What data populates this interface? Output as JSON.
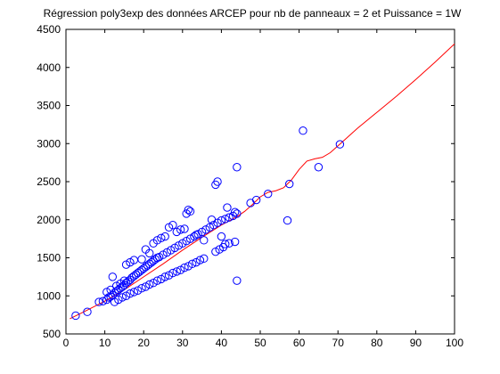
{
  "chart_data": {
    "type": "scatter",
    "title": "Régression poly3exp des données ARCEP pour nb de panneaux = 2 et Puissance = 1W",
    "xlabel": "",
    "ylabel": "",
    "xlim": [
      0,
      100
    ],
    "ylim": [
      500,
      4500
    ],
    "xticks": [
      0,
      10,
      20,
      30,
      40,
      50,
      60,
      70,
      80,
      90,
      100
    ],
    "yticks": [
      500,
      1000,
      1500,
      2000,
      2500,
      3000,
      3500,
      4000,
      4500
    ],
    "xtick_labels": [
      "0",
      "10",
      "20",
      "30",
      "40",
      "50",
      "60",
      "70",
      "80",
      "90",
      "100"
    ],
    "ytick_labels": [
      "500",
      "1000",
      "1500",
      "2000",
      "2500",
      "3000",
      "3500",
      "4000",
      "4500"
    ],
    "grid": false,
    "legend": "none",
    "colors": {
      "points": "#0000ff",
      "curve": "#ff0000",
      "axes": "#000000"
    },
    "series": [
      {
        "type": "scatter",
        "marker": "circle-open",
        "points": [
          [
            2.5,
            740
          ],
          [
            5.5,
            790
          ],
          [
            8.5,
            920
          ],
          [
            9.5,
            930
          ],
          [
            10.5,
            950
          ],
          [
            11,
            980
          ],
          [
            11.5,
            990
          ],
          [
            12,
            1010
          ],
          [
            12.5,
            1040
          ],
          [
            13,
            1060
          ],
          [
            13.5,
            1080
          ],
          [
            14,
            1100
          ],
          [
            14.5,
            1120
          ],
          [
            15,
            1140
          ],
          [
            15.5,
            1170
          ],
          [
            16,
            1190
          ],
          [
            16.5,
            1210
          ],
          [
            17,
            1240
          ],
          [
            17.5,
            1260
          ],
          [
            18,
            1280
          ],
          [
            18.5,
            1300
          ],
          [
            19,
            1320
          ],
          [
            19.5,
            1340
          ],
          [
            20,
            1360
          ],
          [
            20.5,
            1380
          ],
          [
            21,
            1400
          ],
          [
            21.5,
            1420
          ],
          [
            22,
            1440
          ],
          [
            22.5,
            1460
          ],
          [
            23,
            1480
          ],
          [
            23.5,
            1500
          ],
          [
            24,
            1510
          ],
          [
            25,
            1540
          ],
          [
            26,
            1570
          ],
          [
            27,
            1600
          ],
          [
            28,
            1630
          ],
          [
            29,
            1660
          ],
          [
            30,
            1690
          ],
          [
            31,
            1720
          ],
          [
            32,
            1750
          ],
          [
            33,
            1780
          ],
          [
            34,
            1810
          ],
          [
            35,
            1840
          ],
          [
            36,
            1870
          ],
          [
            37,
            1900
          ],
          [
            38,
            1930
          ],
          [
            39,
            1960
          ],
          [
            40,
            1990
          ],
          [
            41,
            2010
          ],
          [
            42,
            2030
          ],
          [
            43,
            2050
          ],
          [
            44,
            2080
          ],
          [
            12.5,
            920
          ],
          [
            13.5,
            950
          ],
          [
            14.5,
            980
          ],
          [
            15.5,
            1000
          ],
          [
            16.5,
            1030
          ],
          [
            17.5,
            1050
          ],
          [
            18.5,
            1070
          ],
          [
            19.5,
            1100
          ],
          [
            20.5,
            1120
          ],
          [
            21.5,
            1150
          ],
          [
            22.5,
            1170
          ],
          [
            23.5,
            1200
          ],
          [
            24.5,
            1220
          ],
          [
            25.5,
            1250
          ],
          [
            26.5,
            1270
          ],
          [
            27.5,
            1300
          ],
          [
            28.5,
            1320
          ],
          [
            29.5,
            1340
          ],
          [
            30.5,
            1370
          ],
          [
            31.5,
            1390
          ],
          [
            32.5,
            1420
          ],
          [
            33.5,
            1440
          ],
          [
            34.5,
            1470
          ],
          [
            35.5,
            1490
          ],
          [
            38.5,
            1580
          ],
          [
            39.5,
            1610
          ],
          [
            40.5,
            1640
          ],
          [
            42,
            1690
          ],
          [
            43.5,
            1710
          ],
          [
            10.5,
            1050
          ],
          [
            11.5,
            1080
          ],
          [
            12,
            1250
          ],
          [
            13,
            1130
          ],
          [
            14,
            1160
          ],
          [
            15,
            1200
          ],
          [
            15.5,
            1410
          ],
          [
            16.5,
            1440
          ],
          [
            17.5,
            1470
          ],
          [
            19.5,
            1480
          ],
          [
            20.5,
            1610
          ],
          [
            21.5,
            1560
          ],
          [
            22.5,
            1690
          ],
          [
            23.5,
            1730
          ],
          [
            24.5,
            1760
          ],
          [
            25.5,
            1780
          ],
          [
            26.5,
            1900
          ],
          [
            27.5,
            1930
          ],
          [
            28.5,
            1840
          ],
          [
            29.5,
            1870
          ],
          [
            30.5,
            1880
          ],
          [
            31,
            2080
          ],
          [
            31.5,
            2130
          ],
          [
            32,
            2110
          ],
          [
            33.5,
            1800
          ],
          [
            35.5,
            1730
          ],
          [
            37.5,
            2000
          ],
          [
            38.5,
            2460
          ],
          [
            39,
            2500
          ],
          [
            41.5,
            2160
          ],
          [
            43.5,
            2100
          ],
          [
            44,
            2690
          ],
          [
            40,
            1780
          ],
          [
            41,
            1680
          ],
          [
            44,
            1200
          ],
          [
            47.5,
            2220
          ],
          [
            49,
            2260
          ],
          [
            52,
            2340
          ],
          [
            57,
            1990
          ],
          [
            57.5,
            2470
          ],
          [
            61,
            3170
          ],
          [
            65,
            2690
          ],
          [
            70.5,
            2990
          ]
        ]
      },
      {
        "type": "line",
        "points": [
          [
            1,
            700
          ],
          [
            5,
            800
          ],
          [
            10,
            930
          ],
          [
            15,
            1080
          ],
          [
            20,
            1250
          ],
          [
            25,
            1420
          ],
          [
            30,
            1600
          ],
          [
            35,
            1770
          ],
          [
            40,
            1930
          ],
          [
            44,
            2040
          ],
          [
            46,
            2110
          ],
          [
            48,
            2200
          ],
          [
            50,
            2300
          ],
          [
            52,
            2360
          ],
          [
            54,
            2380
          ],
          [
            56,
            2420
          ],
          [
            58,
            2520
          ],
          [
            60,
            2660
          ],
          [
            62,
            2770
          ],
          [
            64,
            2800
          ],
          [
            66,
            2820
          ],
          [
            68,
            2880
          ],
          [
            70,
            2970
          ],
          [
            75,
            3200
          ],
          [
            80,
            3410
          ],
          [
            85,
            3620
          ],
          [
            90,
            3840
          ],
          [
            95,
            4070
          ],
          [
            100,
            4310
          ]
        ]
      }
    ]
  }
}
